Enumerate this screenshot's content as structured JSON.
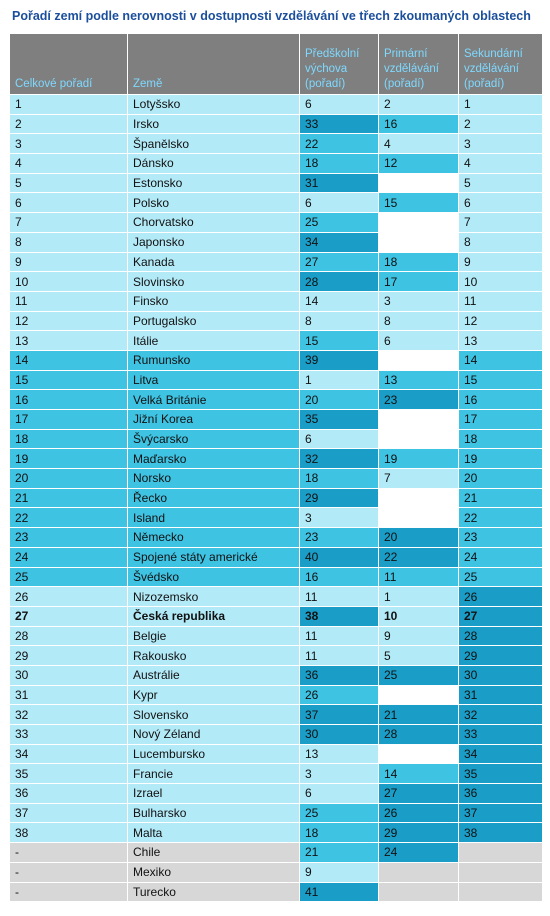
{
  "title": "Pořadí zemí podle nerovnosti v dostupnosti vzdělávání ve třech zkoumaných oblastech",
  "headers": [
    "Celkové pořadí",
    "Země",
    "Předškolní výchova (pořadí)",
    "Primární vzdělávání (pořadí)",
    "Sekundární vzdělávání (pořadí)"
  ],
  "colors": {
    "light": "#b3eaf8",
    "mid": "#3fc3e3",
    "dark": "#1a9ec8",
    "grey": "#d7d7d7",
    "header": "#7f7f7f",
    "header_text": "#7fd9ff",
    "title": "#1b4f9c"
  },
  "rows": [
    {
      "rank": "1",
      "country": "Lotyšsko",
      "pre": "6",
      "pre_lvl": 1,
      "pri": "2",
      "pri_lvl": 1,
      "sec": "1",
      "sec_lvl": 1
    },
    {
      "rank": "2",
      "country": "Irsko",
      "pre": "33",
      "pre_lvl": 3,
      "pri": "16",
      "pri_lvl": 2,
      "sec": "2",
      "sec_lvl": 1
    },
    {
      "rank": "3",
      "country": "Španělsko",
      "pre": "22",
      "pre_lvl": 2,
      "pri": "4",
      "pri_lvl": 1,
      "sec": "3",
      "sec_lvl": 1
    },
    {
      "rank": "4",
      "country": "Dánsko",
      "pre": "18",
      "pre_lvl": 2,
      "pri": "12",
      "pri_lvl": 2,
      "sec": "4",
      "sec_lvl": 1
    },
    {
      "rank": "5",
      "country": "Estonsko",
      "pre": "31",
      "pre_lvl": 3,
      "pri": "",
      "pri_lvl": 0,
      "sec": "5",
      "sec_lvl": 1
    },
    {
      "rank": "6",
      "country": "Polsko",
      "pre": "6",
      "pre_lvl": 1,
      "pri": "15",
      "pri_lvl": 2,
      "sec": "6",
      "sec_lvl": 1
    },
    {
      "rank": "7",
      "country": "Chorvatsko",
      "pre": "25",
      "pre_lvl": 2,
      "pri": "",
      "pri_lvl": 0,
      "sec": "7",
      "sec_lvl": 1
    },
    {
      "rank": "8",
      "country": "Japonsko",
      "pre": "34",
      "pre_lvl": 3,
      "pri": "",
      "pri_lvl": 0,
      "sec": "8",
      "sec_lvl": 1
    },
    {
      "rank": "9",
      "country": "Kanada",
      "pre": "27",
      "pre_lvl": 2,
      "pri": "18",
      "pri_lvl": 2,
      "sec": "9",
      "sec_lvl": 1
    },
    {
      "rank": "10",
      "country": "Slovinsko",
      "pre": "28",
      "pre_lvl": 3,
      "pri": "17",
      "pri_lvl": 2,
      "sec": "10",
      "sec_lvl": 1
    },
    {
      "rank": "11",
      "country": "Finsko",
      "pre": "14",
      "pre_lvl": 1,
      "pri": "3",
      "pri_lvl": 1,
      "sec": "11",
      "sec_lvl": 1
    },
    {
      "rank": "12",
      "country": "Portugalsko",
      "pre": "8",
      "pre_lvl": 1,
      "pri": "8",
      "pri_lvl": 1,
      "sec": "12",
      "sec_lvl": 1
    },
    {
      "rank": "13",
      "country": "Itálie",
      "pre": "15",
      "pre_lvl": 2,
      "pri": "6",
      "pri_lvl": 1,
      "sec": "13",
      "sec_lvl": 1
    },
    {
      "rank": "14",
      "country": "Rumunsko",
      "pre": "39",
      "pre_lvl": 3,
      "pri": "",
      "pri_lvl": 0,
      "sec": "14",
      "sec_lvl": 2
    },
    {
      "rank": "15",
      "country": "Litva",
      "pre": "1",
      "pre_lvl": 1,
      "pri": "13",
      "pri_lvl": 2,
      "sec": "15",
      "sec_lvl": 2
    },
    {
      "rank": "16",
      "country": "Velká Británie",
      "pre": "20",
      "pre_lvl": 2,
      "pri": "23",
      "pri_lvl": 3,
      "sec": "16",
      "sec_lvl": 2
    },
    {
      "rank": "17",
      "country": "Jižní Korea",
      "pre": "35",
      "pre_lvl": 3,
      "pri": "",
      "pri_lvl": 0,
      "sec": "17",
      "sec_lvl": 2
    },
    {
      "rank": "18",
      "country": "Švýcarsko",
      "pre": "6",
      "pre_lvl": 1,
      "pri": "",
      "pri_lvl": 0,
      "sec": "18",
      "sec_lvl": 2
    },
    {
      "rank": "19",
      "country": "Maďarsko",
      "pre": "32",
      "pre_lvl": 3,
      "pri": "19",
      "pri_lvl": 2,
      "sec": "19",
      "sec_lvl": 2
    },
    {
      "rank": "20",
      "country": "Norsko",
      "pre": "18",
      "pre_lvl": 2,
      "pri": "7",
      "pri_lvl": 1,
      "sec": "20",
      "sec_lvl": 2
    },
    {
      "rank": "21",
      "country": "Řecko",
      "pre": "29",
      "pre_lvl": 3,
      "pri": "",
      "pri_lvl": 0,
      "sec": "21",
      "sec_lvl": 2
    },
    {
      "rank": "22",
      "country": "Island",
      "pre": "3",
      "pre_lvl": 1,
      "pri": "",
      "pri_lvl": 0,
      "sec": "22",
      "sec_lvl": 2
    },
    {
      "rank": "23",
      "country": "Německo",
      "pre": "23",
      "pre_lvl": 2,
      "pri": "20",
      "pri_lvl": 3,
      "sec": "23",
      "sec_lvl": 2
    },
    {
      "rank": "24",
      "country": "Spojené státy americké",
      "pre": "40",
      "pre_lvl": 3,
      "pri": "22",
      "pri_lvl": 3,
      "sec": "24",
      "sec_lvl": 2
    },
    {
      "rank": "25",
      "country": "Švédsko",
      "pre": "16",
      "pre_lvl": 2,
      "pri": "11",
      "pri_lvl": 2,
      "sec": "25",
      "sec_lvl": 2
    },
    {
      "rank": "26",
      "country": "Nizozemsko",
      "pre": "11",
      "pre_lvl": 1,
      "pri": "1",
      "pri_lvl": 1,
      "sec": "26",
      "sec_lvl": 3
    },
    {
      "rank": "27",
      "country": "Česká republika",
      "pre": "38",
      "pre_lvl": 3,
      "pri": "10",
      "pri_lvl": 1,
      "sec": "27",
      "sec_lvl": 3,
      "bold": true
    },
    {
      "rank": "28",
      "country": "Belgie",
      "pre": "11",
      "pre_lvl": 1,
      "pri": "9",
      "pri_lvl": 1,
      "sec": "28",
      "sec_lvl": 3
    },
    {
      "rank": "29",
      "country": "Rakousko",
      "pre": "11",
      "pre_lvl": 1,
      "pri": "5",
      "pri_lvl": 1,
      "sec": "29",
      "sec_lvl": 3
    },
    {
      "rank": "30",
      "country": "Austrálie",
      "pre": "36",
      "pre_lvl": 3,
      "pri": "25",
      "pri_lvl": 3,
      "sec": "30",
      "sec_lvl": 3
    },
    {
      "rank": "31",
      "country": "Kypr",
      "pre": "26",
      "pre_lvl": 2,
      "pri": "",
      "pri_lvl": 0,
      "sec": "31",
      "sec_lvl": 3
    },
    {
      "rank": "32",
      "country": "Slovensko",
      "pre": "37",
      "pre_lvl": 3,
      "pri": "21",
      "pri_lvl": 3,
      "sec": "32",
      "sec_lvl": 3
    },
    {
      "rank": "33",
      "country": "Nový Zéland",
      "pre": "30",
      "pre_lvl": 3,
      "pri": "28",
      "pri_lvl": 3,
      "sec": "33",
      "sec_lvl": 3
    },
    {
      "rank": "34",
      "country": "Lucembursko",
      "pre": "13",
      "pre_lvl": 1,
      "pri": "",
      "pri_lvl": 0,
      "sec": "34",
      "sec_lvl": 3
    },
    {
      "rank": "35",
      "country": "Francie",
      "pre": "3",
      "pre_lvl": 1,
      "pri": "14",
      "pri_lvl": 2,
      "sec": "35",
      "sec_lvl": 3
    },
    {
      "rank": "36",
      "country": "Izrael",
      "pre": "6",
      "pre_lvl": 1,
      "pri": "27",
      "pri_lvl": 3,
      "sec": "36",
      "sec_lvl": 3
    },
    {
      "rank": "37",
      "country": "Bulharsko",
      "pre": "25",
      "pre_lvl": 2,
      "pri": "26",
      "pri_lvl": 3,
      "sec": "37",
      "sec_lvl": 3
    },
    {
      "rank": "38",
      "country": "Malta",
      "pre": "18",
      "pre_lvl": 2,
      "pri": "29",
      "pri_lvl": 3,
      "sec": "38",
      "sec_lvl": 3
    },
    {
      "rank": "-",
      "country": "Chile",
      "pre": "21",
      "pre_lvl": 2,
      "pri": "24",
      "pri_lvl": 3,
      "sec": "",
      "sec_lvl": "g"
    },
    {
      "rank": "-",
      "country": "Mexiko",
      "pre": "9",
      "pre_lvl": 1,
      "pri": "",
      "pri_lvl": "g",
      "sec": "",
      "sec_lvl": "g"
    },
    {
      "rank": "-",
      "country": "Turecko",
      "pre": "41",
      "pre_lvl": 3,
      "pri": "",
      "pri_lvl": "g",
      "sec": "",
      "sec_lvl": "g"
    }
  ]
}
